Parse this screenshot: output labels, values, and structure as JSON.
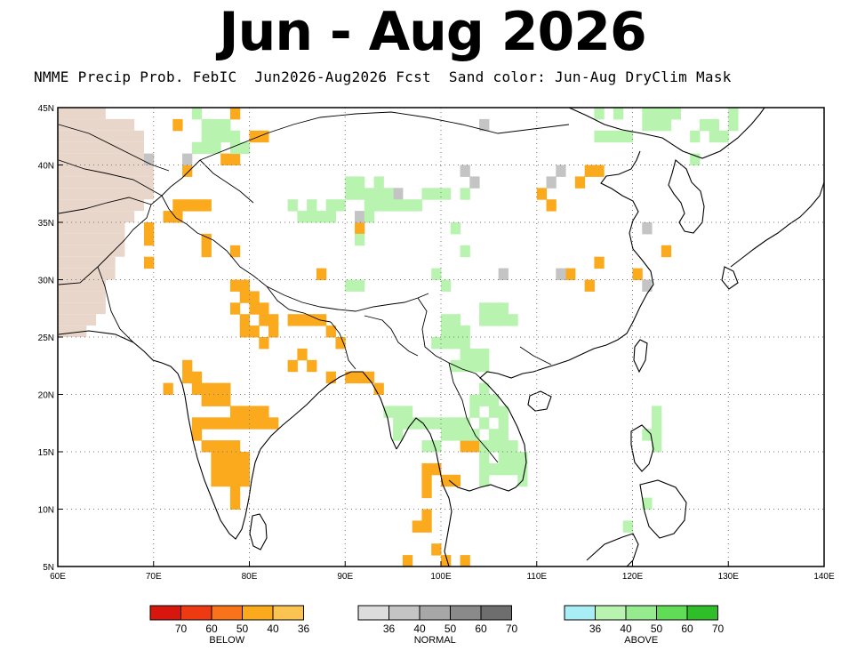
{
  "title": "Jun - Aug 2026",
  "subtitle": "NMME Precip Prob. FebIC  Jun2026-Aug2026 Fcst  Sand color: Jun-Aug DryClim Mask",
  "axes": {
    "lon_ticks": [
      "60E",
      "70E",
      "80E",
      "90E",
      "100E",
      "110E",
      "120E",
      "130E",
      "140E"
    ],
    "lat_ticks": [
      "5N",
      "10N",
      "15N",
      "20N",
      "25N",
      "30N",
      "35N",
      "40N",
      "45N"
    ],
    "lon_range": [
      60,
      140
    ],
    "lat_range": [
      5,
      45
    ]
  },
  "colors": {
    "dry_mask": "#e9d6cb",
    "below": [
      "#d7160e",
      "#ee3a12",
      "#f8731a",
      "#fbaa1e",
      "#fbc452"
    ],
    "normal": [
      "#dcdcdc",
      "#c4c4c4",
      "#a7a7a7",
      "#8a8a8a",
      "#6e6e6e"
    ],
    "above": [
      "#a9eef4",
      "#b8f3b0",
      "#96eb8e",
      "#60dc57",
      "#2fbd2a"
    ]
  },
  "legend": {
    "below": {
      "title": "BELOW",
      "labels": [
        "70",
        "60",
        "50",
        "40",
        "36"
      ]
    },
    "normal": {
      "title": "NORMAL",
      "labels": [
        "36",
        "40",
        "50",
        "60",
        "70"
      ]
    },
    "above": {
      "title": "ABOVE",
      "labels": [
        "36",
        "40",
        "50",
        "60",
        "70"
      ]
    }
  },
  "map_data": {
    "description_cells": "lon/lat of 1-degree grid cells with shaded probability",
    "below_cells": [
      [
        72,
        43
      ],
      [
        78,
        44
      ],
      [
        80,
        42
      ],
      [
        81,
        42
      ],
      [
        73,
        39
      ],
      [
        77,
        40
      ],
      [
        78,
        40
      ],
      [
        72,
        36
      ],
      [
        73,
        36
      ],
      [
        74,
        36
      ],
      [
        71,
        35
      ],
      [
        72,
        35
      ],
      [
        75,
        36
      ],
      [
        69,
        34
      ],
      [
        69,
        33
      ],
      [
        69,
        31
      ],
      [
        75,
        33
      ],
      [
        75,
        32
      ],
      [
        78,
        32
      ],
      [
        87,
        30
      ],
      [
        91,
        34
      ],
      [
        78,
        29
      ],
      [
        79,
        29
      ],
      [
        79,
        28
      ],
      [
        80,
        28
      ],
      [
        78,
        27
      ],
      [
        80,
        27
      ],
      [
        81,
        27
      ],
      [
        79,
        26
      ],
      [
        81,
        26
      ],
      [
        82,
        26
      ],
      [
        79,
        25
      ],
      [
        80,
        25
      ],
      [
        82,
        25
      ],
      [
        84,
        26
      ],
      [
        85,
        26
      ],
      [
        86,
        26
      ],
      [
        87,
        26
      ],
      [
        81,
        24
      ],
      [
        88,
        25
      ],
      [
        89,
        24
      ],
      [
        85,
        23
      ],
      [
        84,
        22
      ],
      [
        86,
        22
      ],
      [
        88,
        21
      ],
      [
        90,
        21
      ],
      [
        91,
        21
      ],
      [
        92,
        21
      ],
      [
        93,
        20
      ],
      [
        73,
        21
      ],
      [
        73,
        22
      ],
      [
        74,
        21
      ],
      [
        74,
        20
      ],
      [
        71,
        20
      ],
      [
        75,
        20
      ],
      [
        76,
        20
      ],
      [
        77,
        20
      ],
      [
        75,
        19
      ],
      [
        76,
        19
      ],
      [
        77,
        19
      ],
      [
        78,
        18
      ],
      [
        79,
        18
      ],
      [
        80,
        18
      ],
      [
        81,
        18
      ],
      [
        74,
        17
      ],
      [
        75,
        17
      ],
      [
        76,
        17
      ],
      [
        77,
        17
      ],
      [
        78,
        17
      ],
      [
        79,
        17
      ],
      [
        80,
        17
      ],
      [
        81,
        17
      ],
      [
        82,
        17
      ],
      [
        74,
        16
      ],
      [
        75,
        15
      ],
      [
        76,
        15
      ],
      [
        77,
        15
      ],
      [
        78,
        15
      ],
      [
        76,
        14
      ],
      [
        77,
        14
      ],
      [
        78,
        14
      ],
      [
        79,
        14
      ],
      [
        76,
        13
      ],
      [
        77,
        13
      ],
      [
        78,
        13
      ],
      [
        79,
        13
      ],
      [
        76,
        12
      ],
      [
        77,
        12
      ],
      [
        78,
        12
      ],
      [
        79,
        12
      ],
      [
        78,
        11
      ],
      [
        78,
        10
      ],
      [
        99,
        13
      ],
      [
        98,
        13
      ],
      [
        98,
        12
      ],
      [
        98,
        11
      ],
      [
        100,
        12
      ],
      [
        101,
        12
      ],
      [
        98,
        9
      ],
      [
        98,
        8
      ],
      [
        97,
        8
      ],
      [
        96,
        5
      ],
      [
        99,
        6
      ],
      [
        102,
        5
      ],
      [
        100,
        5
      ],
      [
        102,
        15
      ],
      [
        103,
        15
      ],
      [
        115,
        29
      ],
      [
        116,
        31
      ],
      [
        111,
        36
      ],
      [
        110,
        37
      ],
      [
        114,
        38
      ],
      [
        115,
        39
      ],
      [
        116,
        39
      ],
      [
        113,
        30
      ],
      [
        120,
        30
      ],
      [
        123,
        32
      ]
    ],
    "normal_cells": [
      [
        69,
        40
      ],
      [
        73,
        40
      ],
      [
        91,
        35
      ],
      [
        95,
        37
      ],
      [
        102,
        39
      ],
      [
        103,
        38
      ],
      [
        111,
        38
      ],
      [
        112,
        39
      ],
      [
        106,
        30
      ],
      [
        112,
        30
      ],
      [
        121,
        29
      ],
      [
        121,
        34
      ],
      [
        124,
        44
      ],
      [
        140,
        36
      ],
      [
        104,
        43
      ]
    ],
    "above_cells": [
      [
        74,
        44
      ],
      [
        75,
        43
      ],
      [
        76,
        43
      ],
      [
        77,
        43
      ],
      [
        75,
        42
      ],
      [
        76,
        42
      ],
      [
        77,
        42
      ],
      [
        78,
        42
      ],
      [
        74,
        41
      ],
      [
        75,
        41
      ],
      [
        76,
        41
      ],
      [
        78,
        41
      ],
      [
        79,
        41
      ],
      [
        88,
        36
      ],
      [
        89,
        36
      ],
      [
        90,
        37
      ],
      [
        91,
        37
      ],
      [
        92,
        37
      ],
      [
        93,
        37
      ],
      [
        94,
        37
      ],
      [
        95,
        36
      ],
      [
        96,
        36
      ],
      [
        97,
        36
      ],
      [
        98,
        37
      ],
      [
        99,
        37
      ],
      [
        100,
        37
      ],
      [
        102,
        37
      ],
      [
        92,
        36
      ],
      [
        93,
        36
      ],
      [
        94,
        36
      ],
      [
        90,
        38
      ],
      [
        91,
        38
      ],
      [
        93,
        38
      ],
      [
        86,
        35
      ],
      [
        87,
        35
      ],
      [
        88,
        35
      ],
      [
        92,
        35
      ],
      [
        86,
        36
      ],
      [
        84,
        36
      ],
      [
        85,
        35
      ],
      [
        91,
        33
      ],
      [
        91,
        29
      ],
      [
        99,
        30
      ],
      [
        100,
        29
      ],
      [
        102,
        32
      ],
      [
        101,
        34
      ],
      [
        90,
        29
      ],
      [
        100,
        26
      ],
      [
        101,
        26
      ],
      [
        100,
        25
      ],
      [
        101,
        25
      ],
      [
        102,
        25
      ],
      [
        104,
        26
      ],
      [
        105,
        26
      ],
      [
        106,
        26
      ],
      [
        107,
        26
      ],
      [
        105,
        27
      ],
      [
        106,
        27
      ],
      [
        104,
        27
      ],
      [
        102,
        25
      ],
      [
        99,
        24
      ],
      [
        100,
        24
      ],
      [
        101,
        24
      ],
      [
        102,
        24
      ],
      [
        102,
        23
      ],
      [
        103,
        23
      ],
      [
        104,
        23
      ],
      [
        101,
        22
      ],
      [
        102,
        22
      ],
      [
        103,
        22
      ],
      [
        104,
        22
      ],
      [
        94,
        18
      ],
      [
        95,
        18
      ],
      [
        96,
        18
      ],
      [
        95,
        17
      ],
      [
        96,
        17
      ],
      [
        97,
        17
      ],
      [
        95,
        16
      ],
      [
        98,
        17
      ],
      [
        99,
        17
      ],
      [
        100,
        17
      ],
      [
        100,
        16
      ],
      [
        99,
        15
      ],
      [
        98,
        15
      ],
      [
        101,
        16
      ],
      [
        102,
        16
      ],
      [
        103,
        16
      ],
      [
        101,
        17
      ],
      [
        102,
        17
      ],
      [
        104,
        17
      ],
      [
        103,
        18
      ],
      [
        103,
        19
      ],
      [
        104,
        19
      ],
      [
        104,
        20
      ],
      [
        105,
        19
      ],
      [
        105,
        18
      ],
      [
        106,
        18
      ],
      [
        106,
        17
      ],
      [
        105,
        16
      ],
      [
        106,
        16
      ],
      [
        105,
        15
      ],
      [
        106,
        15
      ],
      [
        107,
        15
      ],
      [
        106,
        14
      ],
      [
        107,
        14
      ],
      [
        108,
        14
      ],
      [
        106,
        13
      ],
      [
        107,
        13
      ],
      [
        105,
        13
      ],
      [
        104,
        12
      ],
      [
        104,
        13
      ],
      [
        108,
        12
      ],
      [
        108,
        13
      ],
      [
        104,
        14
      ],
      [
        104,
        15
      ],
      [
        113,
        45
      ],
      [
        114,
        45
      ],
      [
        116,
        44
      ],
      [
        118,
        44
      ],
      [
        121,
        44
      ],
      [
        122,
        44
      ],
      [
        123,
        44
      ],
      [
        124,
        44
      ],
      [
        121,
        43
      ],
      [
        122,
        43
      ],
      [
        123,
        43
      ],
      [
        127,
        43
      ],
      [
        128,
        43
      ],
      [
        130,
        44
      ],
      [
        130,
        43
      ],
      [
        126,
        40
      ],
      [
        118,
        42
      ],
      [
        119,
        42
      ],
      [
        116,
        42
      ],
      [
        117,
        42
      ],
      [
        126,
        42
      ],
      [
        128,
        42
      ],
      [
        129,
        42
      ],
      [
        122,
        18
      ],
      [
        122,
        17
      ],
      [
        121,
        16
      ],
      [
        122,
        16
      ],
      [
        122,
        15
      ],
      [
        119,
        8
      ],
      [
        121,
        10
      ]
    ]
  }
}
